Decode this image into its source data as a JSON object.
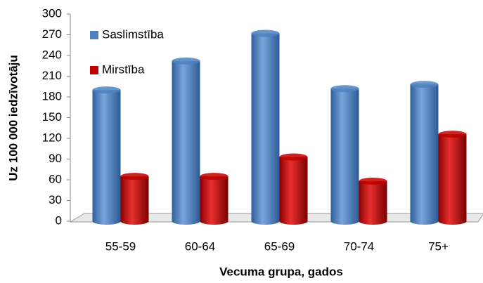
{
  "chart_data": {
    "type": "bar",
    "xlabel": "Vecuma grupa, gados",
    "ylabel": "Uz 100 000 iedzīvotāju",
    "categories": [
      "55-59",
      "60-64",
      "65-69",
      "70-74",
      "75+"
    ],
    "series": [
      {
        "name": "Saslimstība",
        "color": "#4f81bd",
        "values": [
          190,
          232,
          272,
          192,
          198
        ]
      },
      {
        "name": "Mirstība",
        "color": "#c00000",
        "values": [
          65,
          65,
          93,
          58,
          126
        ]
      }
    ],
    "ylim": [
      0,
      300
    ],
    "yticks": [
      0,
      30,
      60,
      90,
      120,
      150,
      180,
      210,
      240,
      270,
      300
    ],
    "legend": "upper left",
    "grid": false
  }
}
